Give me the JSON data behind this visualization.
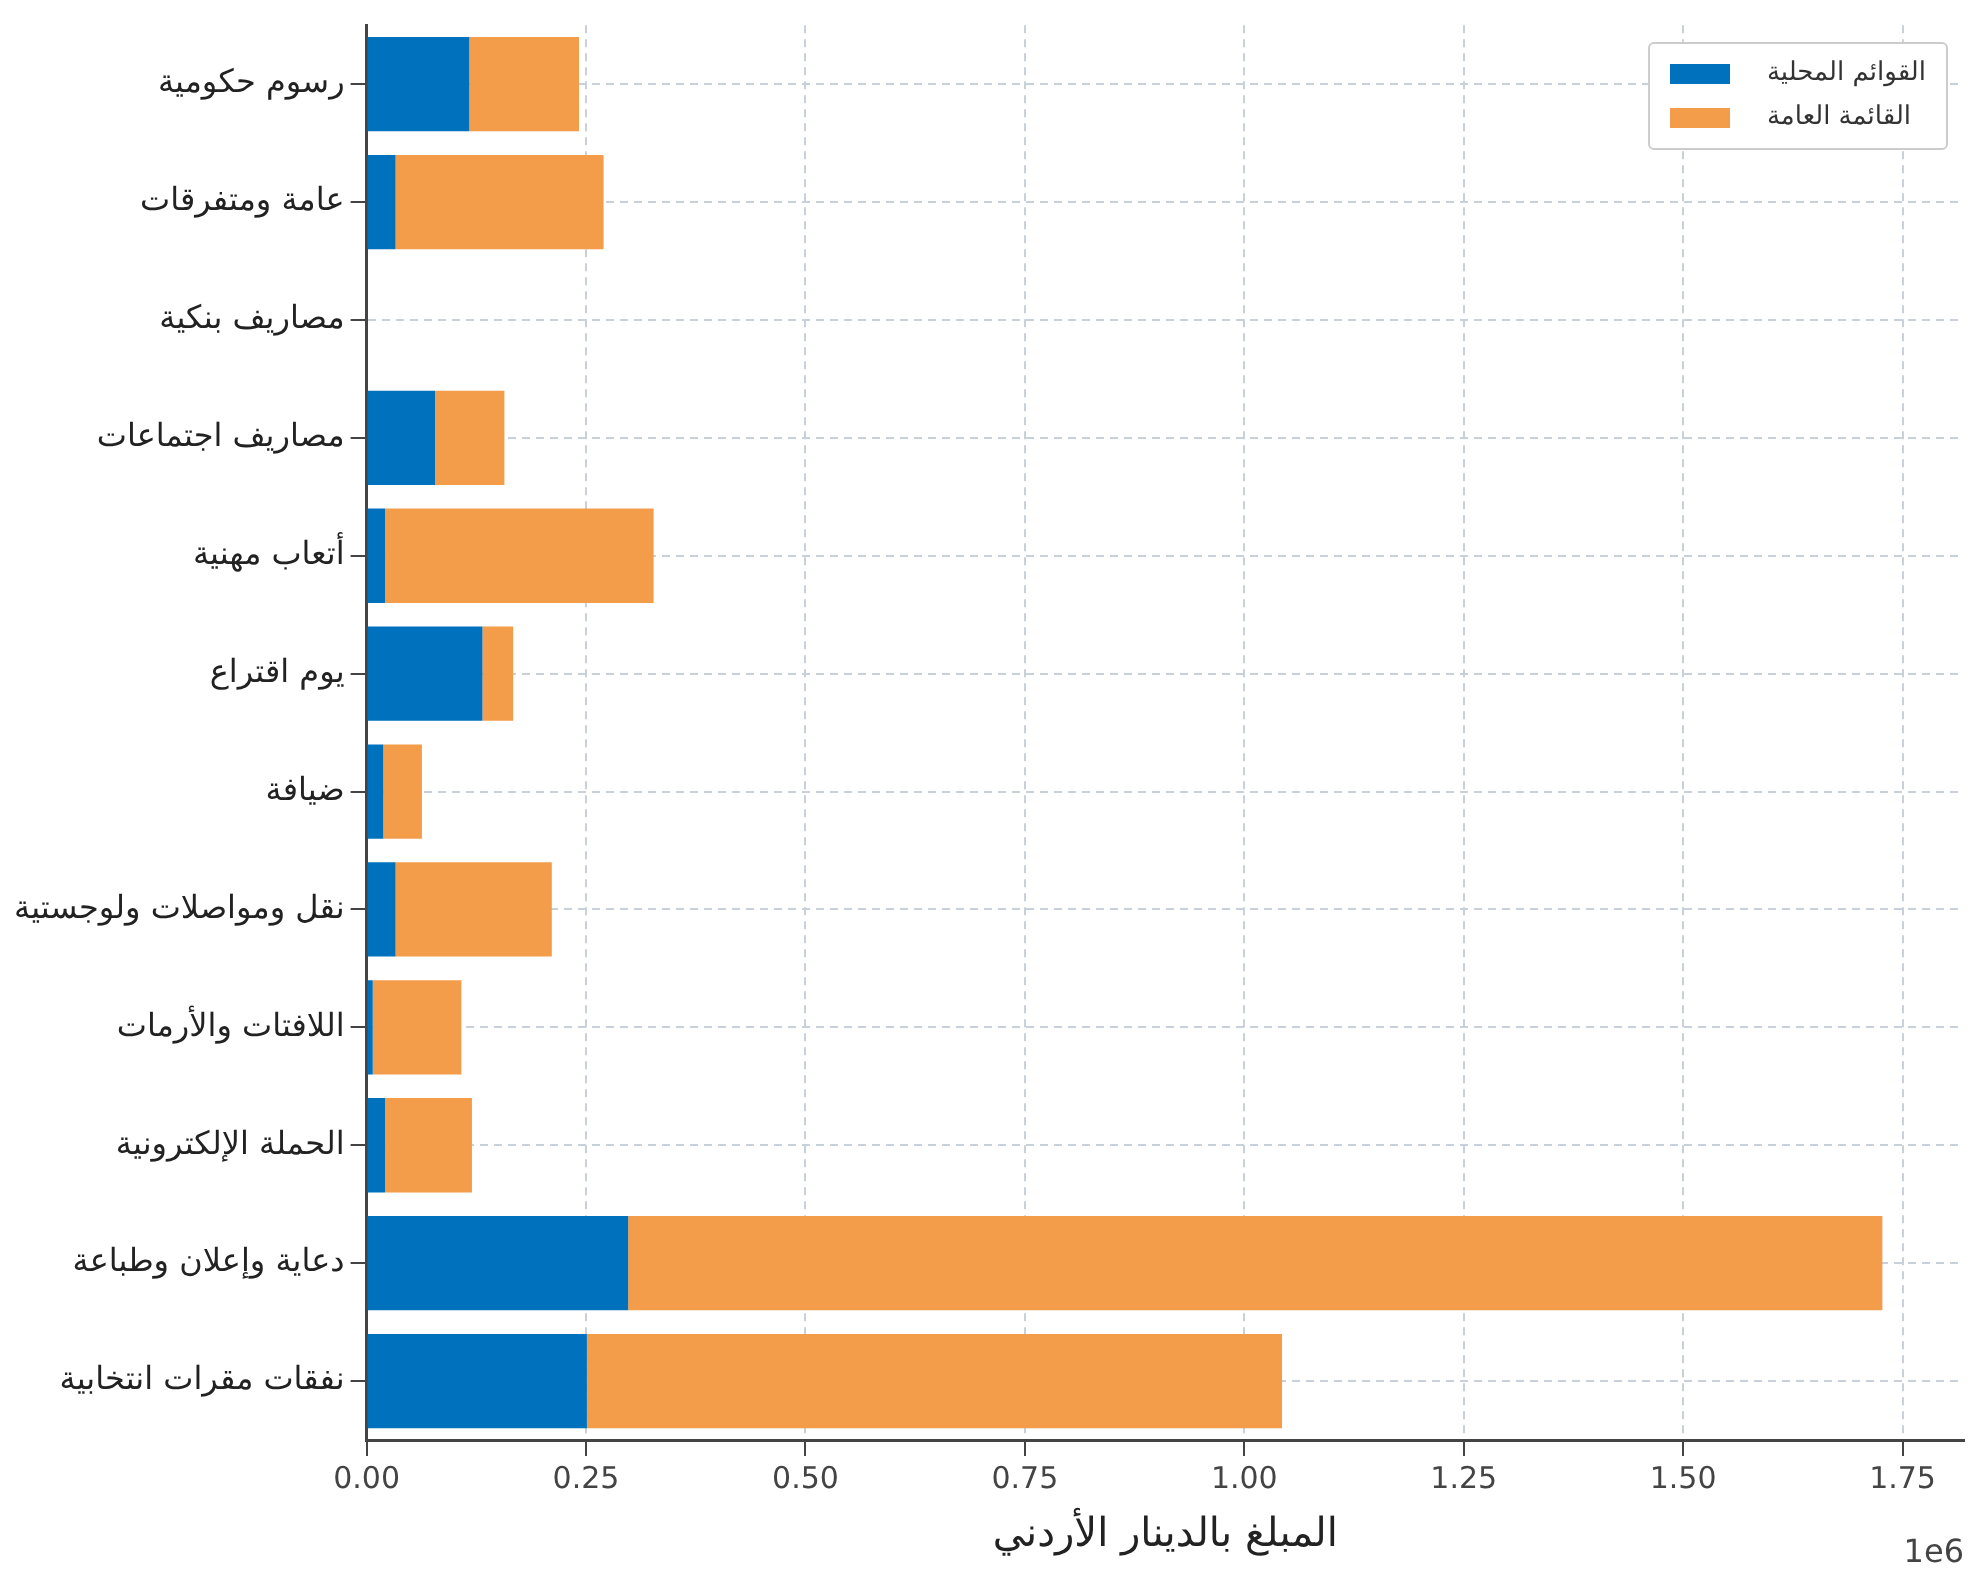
{
  "chart_data": {
    "type": "bar",
    "orientation": "horizontal",
    "stacked": true,
    "xlabel": "المبلغ بالدينار الأردني",
    "categories": [
      "رسوم حكومية",
      "عامة ومتفرقات",
      "مصاريف بنكية",
      "مصاريف اجتماعات",
      "أتعاب مهنية",
      "يوم اقتراع",
      "ضيافة",
      "نقل ومواصلات ولوجستية",
      "اللافتات والأرمات",
      "الحملة الإلكترونية",
      "دعاية وإعلان وطباعة",
      "نفقات مقرات انتخابية"
    ],
    "series": [
      {
        "name": "القوائم المحلية",
        "color": "#0072bd",
        "values": [
          0.117,
          0.033,
          0,
          0.078,
          0.021,
          0.132,
          0.019,
          0.033,
          0.007,
          0.021,
          0.298,
          0.251
        ]
      },
      {
        "name": "القائمة العامة",
        "color": "#f39c4a",
        "values": [
          0.125,
          0.237,
          0,
          0.079,
          0.306,
          0.035,
          0.044,
          0.178,
          0.101,
          0.099,
          1.429,
          0.792
        ]
      }
    ],
    "xlim": [
      0,
      1.82
    ],
    "xticks": [
      {
        "value": 0,
        "label": "0.00"
      },
      0.25,
      {
        "value": 0.5,
        "label": "0.50"
      },
      0.75,
      {
        "value": 1,
        "label": "1.00"
      },
      1.25,
      {
        "value": 1.5,
        "label": "1.50"
      },
      1.75
    ],
    "annotations": [
      "1e6"
    ],
    "grid": true,
    "legend": "top right"
  }
}
